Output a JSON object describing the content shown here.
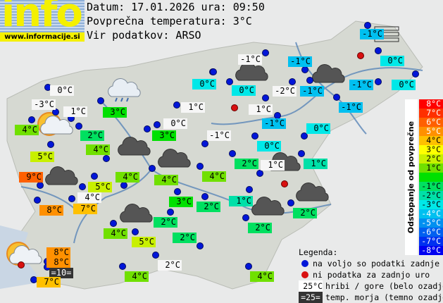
{
  "header": {
    "logo_text": "info",
    "logo_url": "www.informacije.si",
    "date_line": "Datum: 17.01.2026 ura: 09:50",
    "avg_line": "Povprečna temperatura: 3°C",
    "source_line": "Vir podatkov: ARSO"
  },
  "average_temperature": 3,
  "colors": {
    "station_dot": "#0016d8",
    "no_data_dot": "#d81010",
    "mountain_bg": "#f6f6f6",
    "sea_bg": "#333333"
  },
  "labels": [
    {
      "text": "0°C",
      "type": "mountain"
    },
    {
      "text": "-3°C",
      "type": "mountain"
    },
    {
      "text": "1°C",
      "type": "mountain"
    },
    {
      "text": "3°C",
      "type": "station"
    },
    {
      "text": "4°C",
      "type": "station"
    },
    {
      "text": "2°C",
      "type": "station"
    },
    {
      "text": "5°C",
      "type": "station"
    },
    {
      "text": "4°C",
      "type": "station"
    },
    {
      "text": "0°C",
      "type": "station"
    },
    {
      "text": "1°C",
      "type": "mountain"
    },
    {
      "text": "0°C",
      "type": "mountain"
    },
    {
      "text": "3°C",
      "type": "station"
    },
    {
      "text": "-1°C",
      "type": "mountain"
    },
    {
      "text": "-1°C",
      "type": "mountain"
    },
    {
      "text": "-1°C",
      "type": "station"
    },
    {
      "text": "0°C",
      "type": "station"
    },
    {
      "text": "-2°C",
      "type": "mountain"
    },
    {
      "text": "-1°C",
      "type": "station"
    },
    {
      "text": "1°C",
      "type": "mountain"
    },
    {
      "text": "-1°C",
      "type": "station"
    },
    {
      "text": "-1°C",
      "type": "station"
    },
    {
      "text": "0°C",
      "type": "station"
    },
    {
      "text": "0°C",
      "type": "station"
    },
    {
      "text": "2°C",
      "type": "station"
    },
    {
      "text": "1°C",
      "type": "mountain"
    },
    {
      "text": "1°C",
      "type": "station"
    },
    {
      "text": "-1°C",
      "type": "station"
    },
    {
      "text": "0°C",
      "type": "station"
    },
    {
      "text": "-1°C",
      "type": "station"
    },
    {
      "text": "0°C",
      "type": "station"
    },
    {
      "text": "9°C",
      "type": "station"
    },
    {
      "text": "4°C",
      "type": "station"
    },
    {
      "text": "4°C",
      "type": "station"
    },
    {
      "text": "4°C",
      "type": "station"
    },
    {
      "text": "5°C",
      "type": "station"
    },
    {
      "text": "4°C",
      "type": "mountain"
    },
    {
      "text": "8°C",
      "type": "station"
    },
    {
      "text": "7°C",
      "type": "station"
    },
    {
      "text": "3°C",
      "type": "station"
    },
    {
      "text": "2°C",
      "type": "station"
    },
    {
      "text": "1°C",
      "type": "station"
    },
    {
      "text": "2°C",
      "type": "station"
    },
    {
      "text": "2°C",
      "type": "station"
    },
    {
      "text": "2°C",
      "type": "station"
    },
    {
      "text": "4°C",
      "type": "station"
    },
    {
      "text": "5°C",
      "type": "station"
    },
    {
      "text": "2°C",
      "type": "station"
    },
    {
      "text": "8°C",
      "type": "station"
    },
    {
      "text": "8°C",
      "type": "station"
    },
    {
      "text": "=10=",
      "type": "sea"
    },
    {
      "text": "7°C",
      "type": "station"
    },
    {
      "text": "2°C",
      "type": "mountain"
    },
    {
      "text": "4°C",
      "type": "station"
    },
    {
      "text": "4°C",
      "type": "station"
    }
  ],
  "weather_icons": [
    "cloudy",
    "cloudy",
    "cloudy",
    "cloudy",
    "cloudy",
    "cloudy",
    "cloudy",
    "cloudy",
    "cloudy",
    "rain",
    "partly-sunny",
    "partly-sunny",
    "fog"
  ],
  "scale": {
    "title": "Odstopanje od povprečne temperature:",
    "steps": [
      {
        "label": "8°C",
        "color": "#ff0000"
      },
      {
        "label": "7°C",
        "color": "#ff3000"
      },
      {
        "label": "6°C",
        "color": "#ff6000"
      },
      {
        "label": "5°C",
        "color": "#ff9000"
      },
      {
        "label": "4°C",
        "color": "#ffc000"
      },
      {
        "label": "3°C",
        "color": "#ffff00"
      },
      {
        "label": "2°C",
        "color": "#c8f000"
      },
      {
        "label": "1°C",
        "color": "#70e000"
      },
      {
        "label": "",
        "color": "#00e000"
      },
      {
        "label": "-1°C",
        "color": "#00e060"
      },
      {
        "label": "-2°C",
        "color": "#00e0a8"
      },
      {
        "label": "-3°C",
        "color": "#00e8e8"
      },
      {
        "label": "-4°C",
        "color": "#00c0f0"
      },
      {
        "label": "-5°C",
        "color": "#0090f0"
      },
      {
        "label": "-6°C",
        "color": "#0060f0"
      },
      {
        "label": "-7°C",
        "color": "#0030f0"
      },
      {
        "label": "-8°C",
        "color": "#0000f0"
      }
    ]
  },
  "legend": {
    "title": "Legenda:",
    "blue_dot": "na voljo so podatki zadnje ure",
    "red_dot": "ni podatka za zadnjo uro",
    "mountain_sample": "25°C",
    "mountain_text": "hribi / gore (belo ozadje)",
    "sea_sample": "=25=",
    "sea_text": "temp. morja (temno ozadje)"
  }
}
